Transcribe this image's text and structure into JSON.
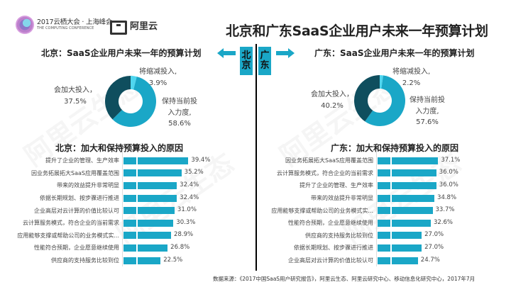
{
  "header": {
    "conference_title": "2017云栖大会 · 上海峰会",
    "conference_subtitle": "THE COMPUTING CONFERENCE",
    "brand": "阿里云",
    "main_title": "北京和广东SaaS企业用户未来一年预算计划"
  },
  "center": {
    "left_city": "北京",
    "right_city": "广东",
    "left_city_chars": [
      "北",
      "京"
    ],
    "right_city_chars": [
      "广",
      "东"
    ]
  },
  "colors": {
    "accent": "#1aa7c7",
    "dark": "#0f4e5e",
    "light": "#4fd6ef"
  },
  "watermark": "阿里云生态",
  "footer": "数据来源：《2017中国SaaS用户研究报告》，阿里云生态、阿里云研究中心、移动信息化研究中心，2017年7月",
  "chart_data": [
    {
      "type": "pie",
      "title": "北京：SaaS企业用户未来一年的预算计划",
      "labels": [
        "将缩减投入",
        "保持当前投入力度",
        "会加大投入"
      ],
      "values": [
        3.9,
        58.6,
        37.5
      ],
      "colors": [
        "#4fd6ef",
        "#1aa7c7",
        "#0f4e5e"
      ],
      "donut": true,
      "display_labels": [
        {
          "line1": "将缩减投入,",
          "line2": "3.9%"
        },
        {
          "line1": "保持当前投",
          "line2": "入力度,",
          "line3": "58.6%"
        },
        {
          "line1": "会加大投入，",
          "line2": "37.5%"
        }
      ]
    },
    {
      "type": "pie",
      "title": "广东：SaaS企业用户未来一年的预算计划",
      "labels": [
        "将缩减投入",
        "保持当前投入力度",
        "会加大投入"
      ],
      "values": [
        2.2,
        57.6,
        40.2
      ],
      "colors": [
        "#4fd6ef",
        "#1aa7c7",
        "#0f4e5e"
      ],
      "donut": true,
      "display_labels": [
        {
          "line1": "将缩减投入,",
          "line2": "2.2%"
        },
        {
          "line1": "保持当前投",
          "line2": "入力度,",
          "line3": "57.6%"
        },
        {
          "line1": "会加大投入，",
          "line2": "40.2%"
        }
      ]
    },
    {
      "type": "bar",
      "orientation": "horizontal",
      "title": "北京：加大和保持预算投入的原因",
      "categories": [
        "提升了企业的管理、生产效率",
        "因业务拓展拓大SaaS应用覆盖范围",
        "带来的效益提升非常明显",
        "依据长期规划、按步骤进行推进",
        "企业高层对云计算的价值比较认可",
        "云计算服务模式，符合企业的当前需求",
        "应用能够支撑或帮助公司的业务模式实...",
        "性能符合预期，企业愿意继续使用",
        "供应商的支持服务比较到位"
      ],
      "values": [
        39.4,
        35.2,
        32.4,
        32.4,
        31.0,
        30.3,
        28.9,
        26.8,
        22.5
      ],
      "value_labels": [
        "39.4%",
        "35.2%",
        "32.4%",
        "32.4%",
        "31.0%",
        "30.3%",
        "28.9%",
        "26.8%",
        "22.5%"
      ]
    },
    {
      "type": "bar",
      "orientation": "horizontal",
      "title": "广东：加大和保持预算投入的原因",
      "categories": [
        "因业务拓展拓大SaaS应用覆盖范围",
        "云计算服务模式，符合企业的当前需求",
        "提升了企业的管理、生产效率",
        "带来的效益提升非常明显",
        "应用能够支撑或帮助公司的业务模式实...",
        "性能符合预期，企业愿意继续使用",
        "供应商的支持服务比较到位",
        "依据长期规划、按步骤进行推进",
        "企业高层对云计算的价值比较认可"
      ],
      "values": [
        37.1,
        36.0,
        36.0,
        34.8,
        33.7,
        32.6,
        27.0,
        27.0,
        24.7
      ],
      "value_labels": [
        "37.1%",
        "36.0%",
        "36.0%",
        "34.8%",
        "33.7%",
        "32.6%",
        "27.0%",
        "27.0%",
        "24.7%"
      ]
    }
  ]
}
